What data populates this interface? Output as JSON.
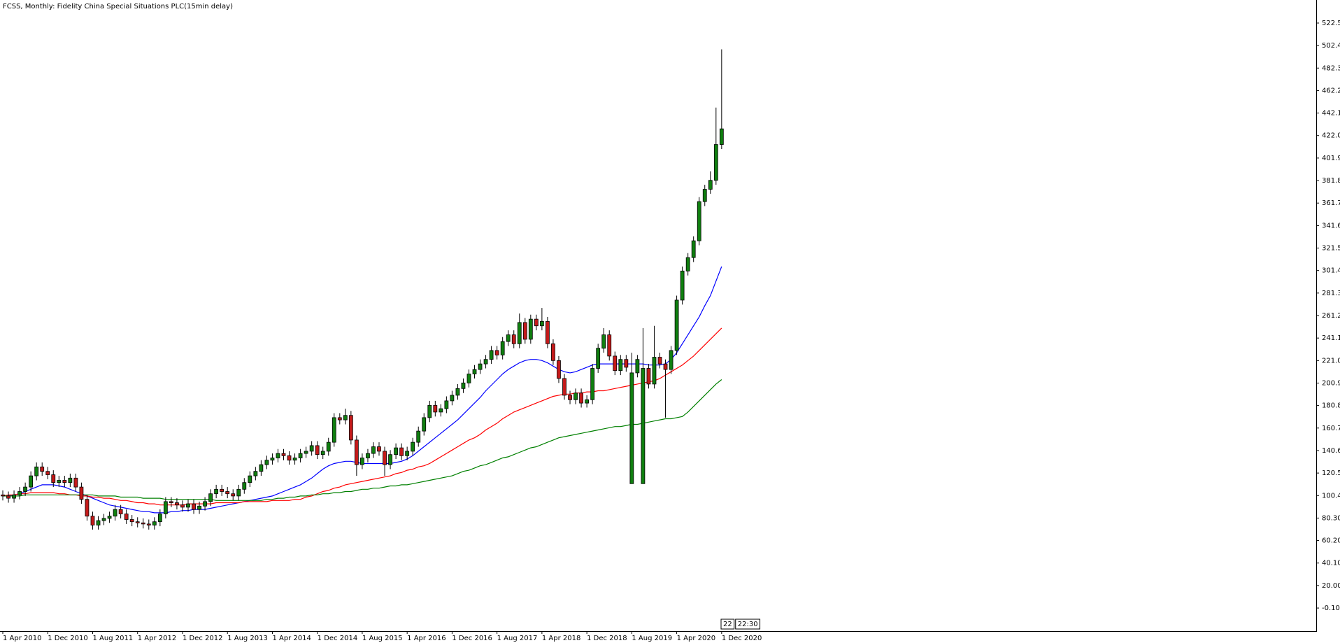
{
  "chart_data": {
    "type": "candlestick",
    "title": "FCSS, Monthly:  Fidelity China Special Situations PLC(15min delay)",
    "categories": [
      "1 Apr 2010",
      null,
      null,
      null,
      null,
      null,
      null,
      null,
      "1 Dec 2010",
      null,
      null,
      null,
      null,
      null,
      null,
      null,
      "1 Aug 2011",
      null,
      null,
      null,
      null,
      null,
      null,
      null,
      "1 Apr 2012",
      null,
      null,
      null,
      null,
      null,
      null,
      null,
      "1 Dec 2012",
      null,
      null,
      null,
      null,
      null,
      null,
      null,
      "1 Aug 2013",
      null,
      null,
      null,
      null,
      null,
      null,
      null,
      "1 Apr 2014",
      null,
      null,
      null,
      null,
      null,
      null,
      null,
      "1 Dec 2014",
      null,
      null,
      null,
      null,
      null,
      null,
      null,
      "1 Aug 2015",
      null,
      null,
      null,
      null,
      null,
      null,
      null,
      "1 Apr 2016",
      null,
      null,
      null,
      null,
      null,
      null,
      null,
      "1 Dec 2016",
      null,
      null,
      null,
      null,
      null,
      null,
      null,
      "1 Aug 2017",
      null,
      null,
      null,
      null,
      null,
      null,
      null,
      "1 Apr 2018",
      null,
      null,
      null,
      null,
      null,
      null,
      null,
      "1 Dec 2018",
      null,
      null,
      null,
      null,
      null,
      null,
      null,
      "1 Aug 2019",
      null,
      null,
      null,
      null,
      null,
      null,
      null,
      "1 Apr 2020",
      null,
      null,
      null,
      null,
      null,
      null,
      null,
      "1 Dec 2020"
    ],
    "open": [
      101,
      100,
      98,
      101,
      104,
      108,
      118,
      126,
      122,
      119,
      112,
      114,
      112,
      116,
      108,
      97,
      82,
      74,
      78,
      80,
      82,
      88,
      84,
      79,
      77,
      76,
      75,
      74,
      77,
      84,
      95,
      94,
      92,
      90,
      93,
      88,
      91,
      95,
      102,
      106,
      104,
      102,
      100,
      106,
      112,
      118,
      122,
      128,
      132,
      134,
      138,
      136,
      132,
      134,
      138,
      140,
      145,
      137,
      140,
      148,
      170,
      168,
      172,
      150,
      128,
      134,
      138,
      144,
      140,
      128,
      137,
      143,
      136,
      140,
      148,
      158,
      170,
      181,
      175,
      178,
      185,
      190,
      196,
      201,
      209,
      213,
      218,
      222,
      230,
      226,
      238,
      244,
      236,
      255,
      240,
      258,
      252,
      256,
      236,
      221,
      205,
      190,
      186,
      192,
      183,
      186,
      214,
      232,
      244,
      225,
      212,
      222,
      111,
      210,
      111,
      214,
      200,
      224,
      218,
      213,
      230,
      275,
      301,
      313,
      328,
      363,
      374,
      382,
      414
    ],
    "high": [
      105,
      104,
      105,
      108,
      112,
      122,
      130,
      130,
      126,
      123,
      118,
      118,
      120,
      120,
      112,
      101,
      86,
      82,
      84,
      86,
      92,
      92,
      88,
      83,
      81,
      80,
      79,
      81,
      88,
      99,
      99,
      98,
      96,
      97,
      97,
      95,
      99,
      106,
      110,
      110,
      108,
      106,
      110,
      116,
      122,
      126,
      132,
      136,
      138,
      142,
      142,
      140,
      138,
      142,
      144,
      149,
      149,
      144,
      152,
      174,
      174,
      178,
      176,
      154,
      138,
      142,
      148,
      148,
      144,
      141,
      147,
      147,
      144,
      152,
      162,
      174,
      185,
      185,
      182,
      189,
      194,
      200,
      205,
      213,
      217,
      222,
      226,
      234,
      234,
      242,
      248,
      248,
      263,
      259,
      262,
      262,
      268,
      260,
      240,
      225,
      209,
      194,
      196,
      196,
      190,
      218,
      236,
      250,
      248,
      229,
      226,
      226,
      228,
      226,
      250,
      218,
      252,
      228,
      222,
      234,
      279,
      305,
      317,
      332,
      367,
      378,
      390,
      447,
      499
    ],
    "low": [
      96,
      94,
      94,
      97,
      100,
      104,
      114,
      118,
      115,
      108,
      108,
      108,
      108,
      104,
      93,
      78,
      70,
      70,
      74,
      76,
      78,
      80,
      75,
      73,
      72,
      71,
      70,
      70,
      73,
      80,
      90,
      88,
      86,
      86,
      84,
      84,
      87,
      91,
      98,
      100,
      98,
      96,
      96,
      102,
      108,
      114,
      118,
      124,
      128,
      130,
      132,
      128,
      128,
      130,
      134,
      136,
      133,
      133,
      136,
      144,
      164,
      164,
      146,
      118,
      124,
      130,
      134,
      136,
      118,
      124,
      133,
      132,
      132,
      136,
      144,
      154,
      166,
      171,
      171,
      174,
      181,
      186,
      192,
      197,
      205,
      209,
      214,
      218,
      222,
      222,
      234,
      232,
      232,
      236,
      236,
      248,
      248,
      232,
      217,
      201,
      186,
      182,
      182,
      179,
      179,
      182,
      210,
      228,
      221,
      208,
      208,
      211,
      111,
      206,
      111,
      196,
      196,
      214,
      170,
      209,
      226,
      271,
      297,
      309,
      324,
      359,
      370,
      378,
      410
    ],
    "close": [
      100,
      98,
      101,
      104,
      108,
      118,
      126,
      122,
      119,
      112,
      114,
      112,
      116,
      108,
      97,
      82,
      74,
      78,
      80,
      82,
      88,
      84,
      79,
      77,
      76,
      75,
      74,
      77,
      84,
      95,
      94,
      92,
      90,
      93,
      88,
      91,
      95,
      102,
      106,
      104,
      102,
      100,
      106,
      112,
      118,
      122,
      128,
      132,
      134,
      138,
      136,
      132,
      134,
      138,
      140,
      145,
      137,
      140,
      148,
      170,
      168,
      172,
      150,
      128,
      134,
      138,
      144,
      140,
      128,
      137,
      143,
      136,
      140,
      148,
      158,
      170,
      181,
      175,
      178,
      185,
      190,
      196,
      201,
      209,
      213,
      218,
      222,
      230,
      226,
      238,
      244,
      236,
      255,
      240,
      258,
      252,
      256,
      236,
      221,
      205,
      190,
      186,
      192,
      183,
      186,
      214,
      232,
      244,
      225,
      212,
      222,
      215,
      210,
      222,
      214,
      200,
      224,
      218,
      213,
      230,
      275,
      301,
      313,
      328,
      363,
      374,
      382,
      414,
      428
    ],
    "up_color": "#0f7f0f",
    "down_color": "#c41a1a",
    "series": [
      {
        "color": "#0000ff",
        "values": [
          100,
          100,
          101,
          102,
          104,
          106,
          108,
          110,
          110,
          110,
          109,
          108,
          106,
          104,
          102,
          100,
          98,
          96,
          94,
          92,
          91,
          90,
          89,
          88,
          87,
          86,
          86,
          85,
          85,
          85,
          86,
          86,
          87,
          87,
          88,
          88,
          88,
          89,
          90,
          91,
          92,
          93,
          94,
          95,
          96,
          97,
          98,
          99,
          100,
          102,
          104,
          106,
          108,
          110,
          113,
          116,
          120,
          124,
          127,
          129,
          130,
          131,
          131,
          130,
          129,
          129,
          129,
          129,
          129,
          129,
          130,
          131,
          133,
          136,
          140,
          144,
          148,
          152,
          156,
          160,
          164,
          168,
          173,
          178,
          183,
          188,
          194,
          199,
          204,
          209,
          213,
          216,
          219,
          221,
          222,
          222,
          221,
          219,
          216,
          213,
          211,
          210,
          211,
          213,
          215,
          217,
          218,
          218,
          218,
          218,
          218,
          218,
          218,
          218,
          218,
          217,
          217,
          217,
          218,
          222,
          228,
          236,
          244,
          252,
          260,
          270,
          279,
          292,
          305
        ]
      },
      {
        "color": "#ff0000",
        "values": [
          100,
          101,
          101,
          102,
          102,
          103,
          103,
          103,
          103,
          103,
          102,
          102,
          101,
          101,
          100,
          100,
          99,
          99,
          98,
          98,
          97,
          96,
          96,
          95,
          94,
          94,
          93,
          93,
          92,
          92,
          92,
          92,
          92,
          93,
          93,
          93,
          93,
          93,
          94,
          94,
          94,
          94,
          94,
          95,
          95,
          95,
          95,
          95,
          96,
          96,
          96,
          96,
          97,
          97,
          99,
          100,
          102,
          104,
          105,
          107,
          108,
          110,
          111,
          112,
          113,
          114,
          115,
          116,
          117,
          118,
          120,
          121,
          123,
          124,
          126,
          127,
          129,
          132,
          135,
          138,
          141,
          144,
          147,
          150,
          152,
          155,
          159,
          162,
          165,
          169,
          172,
          175,
          177,
          179,
          181,
          183,
          185,
          187,
          189,
          190,
          191,
          191,
          192,
          192,
          193,
          193,
          194,
          194,
          195,
          196,
          197,
          198,
          199,
          200,
          201,
          202,
          203,
          205,
          208,
          211,
          214,
          217,
          221,
          225,
          230,
          235,
          240,
          245,
          250
        ]
      },
      {
        "color": "#008000",
        "values": [
          100,
          100,
          100,
          100,
          101,
          101,
          101,
          101,
          101,
          101,
          101,
          101,
          101,
          101,
          101,
          101,
          101,
          100,
          100,
          100,
          100,
          99,
          99,
          99,
          99,
          98,
          98,
          98,
          98,
          97,
          97,
          97,
          97,
          97,
          97,
          97,
          97,
          97,
          96,
          96,
          96,
          96,
          96,
          96,
          96,
          96,
          96,
          97,
          97,
          98,
          98,
          99,
          99,
          100,
          100,
          101,
          101,
          102,
          102,
          103,
          103,
          104,
          104,
          105,
          106,
          106,
          107,
          107,
          108,
          109,
          109,
          110,
          110,
          111,
          112,
          113,
          114,
          115,
          116,
          117,
          118,
          120,
          122,
          123,
          125,
          127,
          128,
          130,
          132,
          134,
          135,
          137,
          139,
          141,
          143,
          144,
          146,
          148,
          150,
          152,
          153,
          154,
          155,
          156,
          157,
          158,
          159,
          160,
          161,
          162,
          162,
          163,
          164,
          164,
          165,
          166,
          167,
          168,
          169,
          169,
          170,
          171,
          175,
          180,
          185,
          190,
          195,
          200,
          204
        ]
      }
    ],
    "ylim": [
      -20.7,
      543.1
    ],
    "yticks": [
      {
        "value": -0.1,
        "label": "-0.10"
      },
      {
        "value": 20,
        "label": "20.00"
      },
      {
        "value": 40.1,
        "label": "40.10"
      },
      {
        "value": 60.2,
        "label": "60.20"
      },
      {
        "value": 80.3,
        "label": "80.30"
      },
      {
        "value": 100.4,
        "label": "100.40"
      },
      {
        "value": 120.5,
        "label": "120.50"
      },
      {
        "value": 140.6,
        "label": "140.60"
      },
      {
        "value": 160.7,
        "label": "160.70"
      },
      {
        "value": 180.8,
        "label": "180.80"
      },
      {
        "value": 200.9,
        "label": "200.90"
      },
      {
        "value": 221,
        "label": "221.00"
      },
      {
        "value": 241.1,
        "label": "241.10"
      },
      {
        "value": 261.2,
        "label": "261.20"
      },
      {
        "value": 281.3,
        "label": "281.30"
      },
      {
        "value": 301.4,
        "label": "301.40"
      },
      {
        "value": 321.5,
        "label": "321.50"
      },
      {
        "value": 341.6,
        "label": "341.60"
      },
      {
        "value": 361.7,
        "label": "361.70"
      },
      {
        "value": 381.8,
        "label": "381.80"
      },
      {
        "value": 401.9,
        "label": "401.90"
      },
      {
        "value": 422,
        "label": "422.00"
      },
      {
        "value": 442.1,
        "label": "442.10"
      },
      {
        "value": 462.2,
        "label": "462.20"
      },
      {
        "value": 482.3,
        "label": "482.30"
      },
      {
        "value": 502.4,
        "label": "502.40"
      },
      {
        "value": 522.5,
        "label": "522.50"
      }
    ],
    "grid": false,
    "time_marker": [
      "22",
      "22:30"
    ]
  }
}
